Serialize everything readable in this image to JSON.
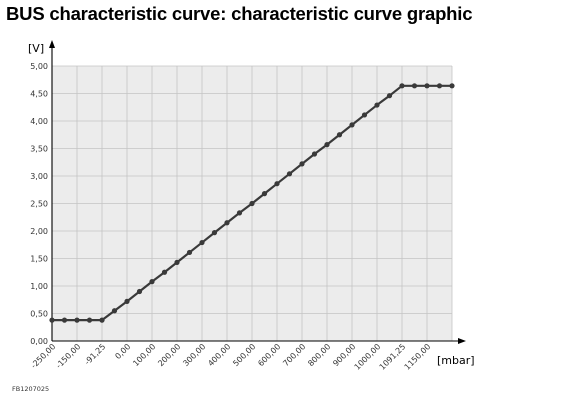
{
  "page": {
    "title": "BUS characteristic curve: characteristic curve graphic",
    "figure_code": "FB1207025"
  },
  "chart_data": {
    "type": "line",
    "ylabel": "[V]",
    "xlabel": "[mbar]",
    "y_ticks": [
      "0,00",
      "0,50",
      "1,00",
      "1,50",
      "2,00",
      "2,50",
      "3,00",
      "3,50",
      "4,00",
      "4,50",
      "5,00"
    ],
    "x_ticks": [
      "-250,00",
      "-150,00",
      "-91,25",
      "0,00",
      "100,00",
      "200,00",
      "300,00",
      "400,00",
      "500,00",
      "600,00",
      "700,00",
      "800,00",
      "900,00",
      "1000,00",
      "1091,25",
      "1150,00"
    ],
    "ylim": [
      0,
      5
    ],
    "grid": true,
    "line_color": "#3a3a3a",
    "plot_background": "#ececec",
    "series": [
      {
        "x_index": [
          0,
          0.5,
          1,
          1.5,
          2,
          2.5,
          3,
          3.5,
          4,
          4.5,
          5,
          5.5,
          6,
          6.5,
          7,
          7.5,
          8,
          8.5,
          9,
          9.5,
          10,
          10.5,
          11,
          11.5,
          12,
          12.5,
          13,
          13.5,
          14,
          14.5,
          15,
          15.5,
          16
        ],
        "values": [
          0.38,
          0.38,
          0.38,
          0.38,
          0.38,
          0.55,
          0.72,
          0.9,
          1.08,
          1.25,
          1.43,
          1.61,
          1.79,
          1.97,
          2.15,
          2.33,
          2.5,
          2.68,
          2.86,
          3.04,
          3.22,
          3.4,
          3.57,
          3.75,
          3.93,
          4.11,
          4.29,
          4.46,
          4.64,
          4.64,
          4.64,
          4.64,
          4.64
        ]
      }
    ]
  }
}
